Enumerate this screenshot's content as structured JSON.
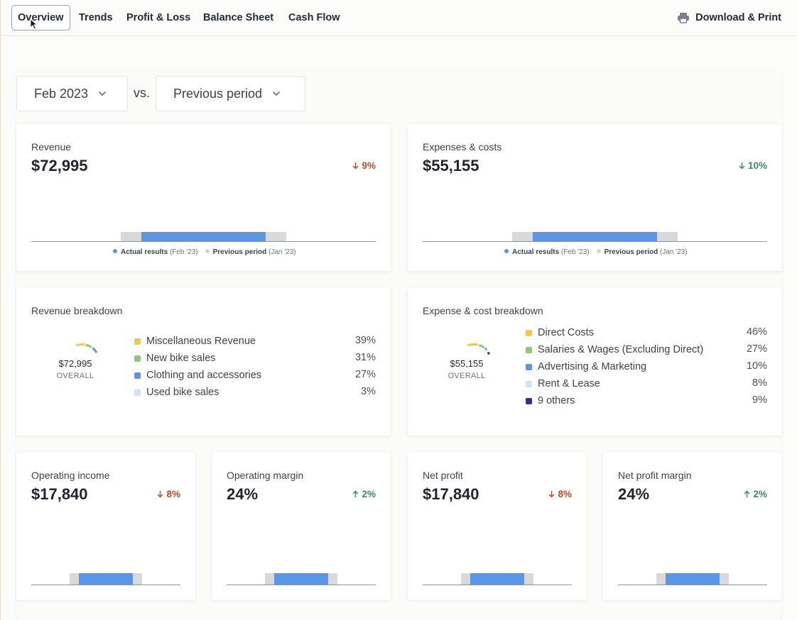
{
  "nav": {
    "tabs": [
      "Overview",
      "Trends",
      "Profit & Loss",
      "Balance Sheet",
      "Cash Flow"
    ],
    "active_tab": "Overview",
    "download_label": "Download & Print"
  },
  "filters": {
    "period": "Feb 2023",
    "vs_label": "vs.",
    "comparison": "Previous period"
  },
  "legend": {
    "actual": "Actual results",
    "actual_period": "(Feb '23)",
    "previous": "Previous period",
    "previous_period": "(Jan '23)"
  },
  "revenue": {
    "title": "Revenue",
    "value": "$72,995",
    "delta": "9%",
    "direction": "down"
  },
  "expenses": {
    "title": "Expenses & costs",
    "value": "$55,155",
    "delta": "10%",
    "direction": "down"
  },
  "revenue_breakdown": {
    "title": "Revenue breakdown",
    "total": "$72,995",
    "total_label": "OVERALL",
    "items": [
      {
        "label": "Miscellaneous Revenue",
        "pct": "39%",
        "color": "#f2c94c"
      },
      {
        "label": "New bike sales",
        "pct": "31%",
        "color": "#8cc97a"
      },
      {
        "label": "Clothing and accessories",
        "pct": "27%",
        "color": "#5b95e5"
      },
      {
        "label": "Used bike sales",
        "pct": "3%",
        "color": "#cfe2f7"
      }
    ]
  },
  "expense_breakdown": {
    "title": "Expense & cost breakdown",
    "total": "$55,155",
    "total_label": "OVERALL",
    "items": [
      {
        "label": "Direct Costs",
        "pct": "46%",
        "color": "#f2c94c"
      },
      {
        "label": "Salaries & Wages (Excluding Direct)",
        "pct": "27%",
        "color": "#8cc97a"
      },
      {
        "label": "Advertising & Marketing",
        "pct": "10%",
        "color": "#5b95e5"
      },
      {
        "label": "Rent & Lease",
        "pct": "8%",
        "color": "#cfe2f7"
      },
      {
        "label": "9 others",
        "pct": "9%",
        "color": "#33308a"
      }
    ]
  },
  "metrics": [
    {
      "title": "Operating income",
      "value": "$17,840",
      "delta": "8%",
      "direction": "down"
    },
    {
      "title": "Operating margin",
      "value": "24%",
      "delta": "2%",
      "direction": "up"
    },
    {
      "title": "Net profit",
      "value": "$17,840",
      "delta": "8%",
      "direction": "down"
    },
    {
      "title": "Net profit margin",
      "value": "24%",
      "delta": "2%",
      "direction": "up"
    }
  ],
  "colors": {
    "actual_bar": "#5b95e5",
    "previous_bar": "#d9d9d9",
    "delta_down": "#c0492b",
    "delta_up": "#3d8b5f"
  }
}
